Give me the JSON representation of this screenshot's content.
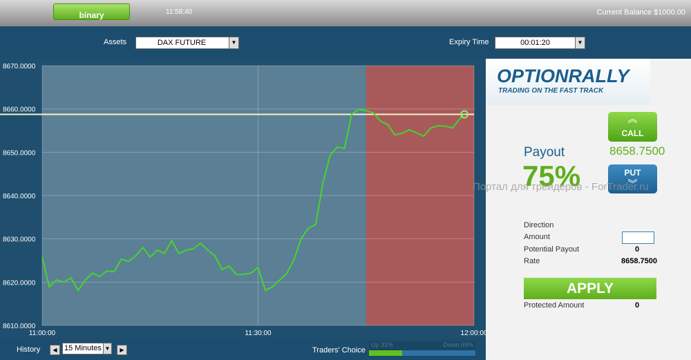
{
  "header": {
    "mode_button": "binary",
    "clock": "11:58:40",
    "balance": "Current Balance $1000.00"
  },
  "toolbar": {
    "assets_label": "Assets",
    "asset": "DAX FUTURE",
    "expiry_label": "Expiry Time",
    "expiry": "00:01:20"
  },
  "chart_data": {
    "type": "line",
    "color": "#44d62c",
    "x": [
      "11:00:00",
      "11:01:00",
      "11:02:00",
      "11:03:00",
      "11:04:00",
      "11:05:00",
      "11:06:00",
      "11:07:00",
      "11:08:00",
      "11:09:00",
      "11:10:00",
      "11:11:00",
      "11:12:00",
      "11:13:00",
      "11:14:00",
      "11:15:00",
      "11:16:00",
      "11:17:00",
      "11:18:00",
      "11:19:00",
      "11:20:00",
      "11:21:00",
      "11:22:00",
      "11:23:00",
      "11:24:00",
      "11:25:00",
      "11:26:00",
      "11:27:00",
      "11:28:00",
      "11:29:00",
      "11:30:00",
      "11:31:00",
      "11:32:00",
      "11:33:00",
      "11:34:00",
      "11:35:00",
      "11:36:00",
      "11:37:00",
      "11:38:00",
      "11:39:00",
      "11:40:00",
      "11:41:00",
      "11:42:00",
      "11:43:00",
      "11:44:00",
      "11:45:00",
      "11:46:00",
      "11:47:00",
      "11:48:00",
      "11:49:00",
      "11:50:00",
      "11:51:00",
      "11:52:00",
      "11:53:00",
      "11:54:00",
      "11:55:00",
      "11:56:00",
      "11:57:00",
      "11:58:00",
      "11:58:40"
    ],
    "values": [
      8625.8,
      8618.9,
      8620.5,
      8620.0,
      8621.0,
      8618.1,
      8620.5,
      8622.1,
      8621.3,
      8622.6,
      8622.4,
      8625.3,
      8624.8,
      8626.1,
      8628.0,
      8625.8,
      8627.4,
      8626.6,
      8629.6,
      8626.6,
      8627.4,
      8627.7,
      8629.0,
      8627.4,
      8626.1,
      8622.9,
      8623.7,
      8621.7,
      8621.8,
      8622.1,
      8623.4,
      8618.1,
      8618.9,
      8620.5,
      8622.1,
      8625.3,
      8630.1,
      8632.5,
      8633.3,
      8642.9,
      8649.3,
      8651.2,
      8650.9,
      8658.8,
      8659.9,
      8659.6,
      8659.1,
      8657.2,
      8656.4,
      8654.0,
      8654.4,
      8655.2,
      8654.5,
      8653.7,
      8655.6,
      8656.1,
      8656.0,
      8655.6,
      8657.7,
      8658.75
    ],
    "xlim": [
      "11:00:00",
      "12:00:00"
    ],
    "xticks": [
      "11:00:00",
      "11:30:00",
      "12:00:00"
    ],
    "ylim": [
      8610,
      8670
    ],
    "yticks": [
      {
        "value": 8610,
        "label": "8610.0000"
      },
      {
        "value": 8620,
        "label": "8620.0000"
      },
      {
        "value": 8630,
        "label": "8630.0000"
      },
      {
        "value": 8640,
        "label": "8640.0000"
      },
      {
        "value": 8650,
        "label": "8650.0000"
      },
      {
        "value": 8660,
        "label": "8660.0000"
      },
      {
        "value": 8670,
        "label": "8670.0000"
      }
    ],
    "grid": true,
    "shaded_from": "11:45:00",
    "shade_color": "#a85a5a",
    "reference_line": 8658.75
  },
  "panel": {
    "logo": "OPTIONRALLY",
    "tagline": "TRADING ON THE FAST TRACK",
    "call": "CALL",
    "call_rate": "8658.7500",
    "payout_label": "Payout",
    "payout": "75%",
    "put": "PUT",
    "watermark": "Портал для трейдеров - ForTrader.ru",
    "direction_label": "Direction",
    "amount_label": "Amount",
    "potential_label": "Potential Payout",
    "potential": "0",
    "rate_label": "Rate",
    "rate": "8658.7500",
    "apply": "APPLY",
    "protected_label": "Protected Amount",
    "protected": "0"
  },
  "footer": {
    "history_label": "History",
    "history": "15 Minutes",
    "traders_label": "Traders' Choice",
    "up_label": "Up 31%",
    "up_value": 31,
    "down_label": "Down 69%"
  }
}
